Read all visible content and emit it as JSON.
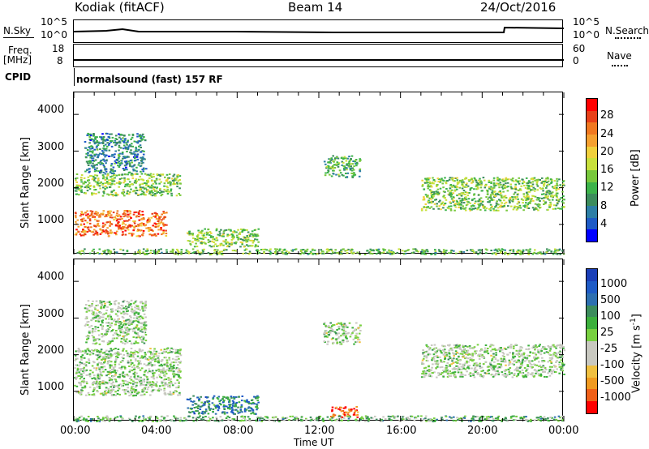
{
  "header": {
    "station": "Kodiak (fitACF)",
    "beam": "Beam 14",
    "date": "24/Oct/2016"
  },
  "params": {
    "nsky_label": "N.Sky",
    "nsearch_label": "N.Search",
    "noise_ticks": [
      "10^5",
      "10^0"
    ],
    "freq_label": "Freq.",
    "freq_unit": "[MHz]",
    "freq_ticks": [
      "18",
      "8"
    ],
    "nave_label": "Nave",
    "nave_ticks": [
      "60",
      "0"
    ],
    "cpid_label": "CPID",
    "cpid_text": "normalsound (fast) 157 RF"
  },
  "chart_data": [
    {
      "type": "heatmap",
      "name": "power",
      "ylabel": "Slant Range [km]",
      "xlabel": "Time UT",
      "y_ticks": [
        "4000",
        "3000",
        "2000",
        "1000"
      ],
      "ylim": [
        180,
        4600
      ],
      "xlim": [
        0,
        24
      ],
      "colorbar_label": "Power [dB]",
      "colorbar_ticks": [
        "28",
        "24",
        "20",
        "16",
        "12",
        "8",
        "4"
      ],
      "colorbar_colors": [
        "#0000ff",
        "#1e5bc6",
        "#2d7fa6",
        "#3c8c5c",
        "#3cb34a",
        "#78c83c",
        "#c8e03c",
        "#f0d03c",
        "#f5a030",
        "#f07820",
        "#e84018",
        "#ff0000"
      ],
      "echo_regions": [
        {
          "t0": 0.0,
          "t1": 5.2,
          "r0": 1800,
          "r1": 2400,
          "level": 0.45
        },
        {
          "t0": 0.0,
          "t1": 4.5,
          "r0": 700,
          "r1": 1400,
          "level": 0.8
        },
        {
          "t0": 0.5,
          "t1": 3.5,
          "r0": 2400,
          "r1": 3500,
          "level": 0.25
        },
        {
          "t0": 5.5,
          "t1": 9.0,
          "r0": 400,
          "r1": 900,
          "level": 0.45
        },
        {
          "t0": 12.2,
          "t1": 14.0,
          "r0": 2300,
          "r1": 2900,
          "level": 0.35
        },
        {
          "t0": 17.0,
          "t1": 24.0,
          "r0": 1400,
          "r1": 2300,
          "level": 0.45
        },
        {
          "t0": 0.0,
          "t1": 24.0,
          "r0": 200,
          "r1": 350,
          "level": 0.4
        }
      ]
    },
    {
      "type": "heatmap",
      "name": "velocity",
      "ylabel": "Slant Range [km]",
      "xlabel": "Time UT",
      "y_ticks": [
        "4000",
        "3000",
        "2000",
        "1000"
      ],
      "ylim": [
        180,
        4600
      ],
      "xlim": [
        0,
        24
      ],
      "colorbar_label": "Velocity [m s",
      "colorbar_label_sup": "-1",
      "colorbar_label_end": "]",
      "colorbar_ticks": [
        "1000",
        "500",
        "100",
        "25",
        "-25",
        "-100",
        "-500",
        "-1000"
      ],
      "colorbar_colors": [
        "#ff0000",
        "#f06018",
        "#f09a20",
        "#f0c040",
        "#c8c8c0",
        "#c8c8c0",
        "#78d040",
        "#3cb03c",
        "#3c8c5c",
        "#2d6fb0",
        "#1e5bc6",
        "#1a3fb8"
      ],
      "echo_regions": [
        {
          "t0": 0.0,
          "t1": 5.2,
          "r0": 900,
          "r1": 2200,
          "level": 0.5
        },
        {
          "t0": 0.5,
          "t1": 3.5,
          "r0": 2300,
          "r1": 3500,
          "level": 0.5
        },
        {
          "t0": 5.5,
          "t1": 9.0,
          "r0": 400,
          "r1": 900,
          "level": 0.75
        },
        {
          "t0": 12.2,
          "t1": 14.0,
          "r0": 2300,
          "r1": 2900,
          "level": 0.5
        },
        {
          "t0": 17.0,
          "t1": 24.0,
          "r0": 1400,
          "r1": 2300,
          "level": 0.5
        },
        {
          "t0": 12.5,
          "t1": 14.0,
          "r0": 300,
          "r1": 600,
          "level": 0.15
        },
        {
          "t0": 0.0,
          "t1": 24.0,
          "r0": 200,
          "r1": 350,
          "level": 0.6
        }
      ]
    }
  ],
  "time_axis": {
    "label": "Time UT",
    "ticks": [
      "00:00",
      "04:00",
      "08:00",
      "12:00",
      "16:00",
      "20:00",
      "00:00"
    ]
  }
}
